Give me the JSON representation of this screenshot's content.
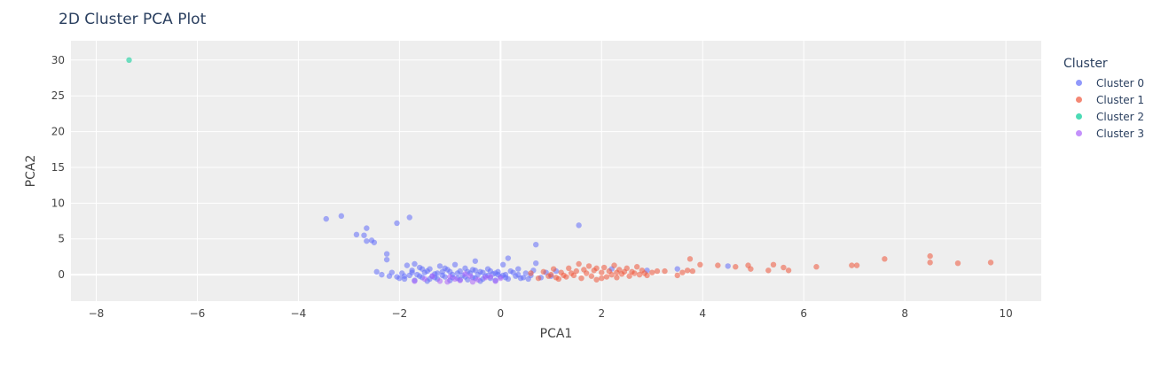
{
  "chart_data": {
    "type": "scatter",
    "title": "2D Cluster PCA Plot",
    "xlabel": "PCA1",
    "ylabel": "PCA2",
    "xlim": [
      -8.5,
      10.7
    ],
    "ylim": [
      -3.7,
      32.7
    ],
    "xticks": [
      -8,
      -6,
      -4,
      -2,
      0,
      2,
      4,
      6,
      8,
      10
    ],
    "yticks": [
      0,
      5,
      10,
      15,
      20,
      25,
      30
    ],
    "grid": true,
    "legend_title": "Cluster",
    "legend_position": "right",
    "series": [
      {
        "name": "Cluster 0",
        "color": "#636efa",
        "points": [
          [
            -3.45,
            7.8
          ],
          [
            -3.15,
            8.2
          ],
          [
            -2.85,
            5.6
          ],
          [
            -2.65,
            6.5
          ],
          [
            -2.7,
            5.5
          ],
          [
            -2.65,
            4.7
          ],
          [
            -2.55,
            4.8
          ],
          [
            -2.5,
            4.5
          ],
          [
            -2.25,
            2.9
          ],
          [
            -2.25,
            2.1
          ],
          [
            -2.05,
            7.2
          ],
          [
            -1.8,
            8.0
          ],
          [
            0.7,
            4.2
          ],
          [
            1.55,
            6.9
          ],
          [
            0.15,
            2.3
          ],
          [
            -0.5,
            1.9
          ],
          [
            -2.45,
            0.4
          ],
          [
            -2.35,
            0.0
          ],
          [
            -2.2,
            -0.2
          ],
          [
            -2.15,
            0.3
          ],
          [
            -2.05,
            -0.3
          ],
          [
            -1.95,
            0.2
          ],
          [
            -1.9,
            -0.6
          ],
          [
            -1.85,
            1.3
          ],
          [
            -1.8,
            -0.1
          ],
          [
            -1.75,
            0.6
          ],
          [
            -1.7,
            -0.8
          ],
          [
            -1.65,
            0.0
          ],
          [
            -1.6,
            1.0
          ],
          [
            -1.55,
            -0.4
          ],
          [
            -1.5,
            0.3
          ],
          [
            -1.45,
            -0.9
          ],
          [
            -1.4,
            0.8
          ],
          [
            -1.35,
            -0.2
          ],
          [
            -1.3,
            0.1
          ],
          [
            -1.25,
            -0.6
          ],
          [
            -1.2,
            1.2
          ],
          [
            -1.15,
            0.4
          ],
          [
            -1.1,
            -0.3
          ],
          [
            -1.05,
            0.7
          ],
          [
            -1.0,
            -0.8
          ],
          [
            -0.95,
            0.0
          ],
          [
            -0.9,
            1.4
          ],
          [
            -0.85,
            -0.5
          ],
          [
            -0.8,
            0.5
          ],
          [
            -0.75,
            -0.1
          ],
          [
            -0.7,
            0.9
          ],
          [
            -0.65,
            -0.7
          ],
          [
            -0.6,
            0.2
          ],
          [
            -0.55,
            -0.4
          ],
          [
            -0.5,
            0.6
          ],
          [
            -0.45,
            0.0
          ],
          [
            -0.4,
            -0.9
          ],
          [
            -0.35,
            0.3
          ],
          [
            -0.3,
            -0.2
          ],
          [
            -0.25,
            0.8
          ],
          [
            -0.2,
            -0.5
          ],
          [
            -0.15,
            0.1
          ],
          [
            -0.1,
            -0.8
          ],
          [
            -0.05,
            0.4
          ],
          [
            0.0,
            -0.3
          ],
          [
            0.05,
            1.4
          ],
          [
            0.1,
            0.0
          ],
          [
            0.15,
            -0.6
          ],
          [
            0.2,
            0.5
          ],
          [
            0.3,
            -0.2
          ],
          [
            0.35,
            0.8
          ],
          [
            0.4,
            -0.5
          ],
          [
            0.5,
            0.2
          ],
          [
            0.6,
            -0.1
          ],
          [
            0.65,
            0.6
          ],
          [
            0.7,
            1.6
          ],
          [
            0.8,
            -0.4
          ],
          [
            0.9,
            0.3
          ],
          [
            1.0,
            -0.2
          ],
          [
            1.1,
            0.5
          ],
          [
            -1.75,
            0.3
          ],
          [
            -1.6,
            -0.2
          ],
          [
            -1.45,
            0.5
          ],
          [
            -1.3,
            -0.4
          ],
          [
            -1.15,
            -0.1
          ],
          [
            -1.0,
            0.4
          ],
          [
            -0.85,
            0.2
          ],
          [
            -0.7,
            -0.3
          ],
          [
            -0.55,
            0.7
          ],
          [
            -0.4,
            0.4
          ],
          [
            -0.25,
            -0.1
          ],
          [
            -0.1,
            0.2
          ],
          [
            0.05,
            -0.1
          ],
          [
            0.25,
            0.3
          ],
          [
            0.45,
            -0.4
          ],
          [
            -1.9,
            -0.2
          ],
          [
            -1.55,
            0.8
          ],
          [
            -1.25,
            0.2
          ],
          [
            -0.95,
            -0.4
          ],
          [
            -0.65,
            0.4
          ],
          [
            -0.35,
            -0.6
          ],
          [
            -0.05,
            0.0
          ],
          [
            0.55,
            -0.6
          ],
          [
            2.2,
            0.8
          ],
          [
            2.9,
            0.6
          ],
          [
            3.5,
            0.8
          ],
          [
            4.5,
            1.2
          ],
          [
            -2.0,
            -0.5
          ],
          [
            -1.7,
            1.5
          ],
          [
            -1.4,
            -0.6
          ],
          [
            -1.1,
            0.9
          ],
          [
            -0.8,
            -0.7
          ],
          [
            -0.5,
            -0.5
          ],
          [
            -0.2,
            0.5
          ],
          [
            0.1,
            -0.4
          ],
          [
            0.35,
            0.0
          ]
        ]
      },
      {
        "name": "Cluster 1",
        "color": "#ef553b",
        "points": [
          [
            0.6,
            0.2
          ],
          [
            0.75,
            -0.5
          ],
          [
            0.85,
            0.4
          ],
          [
            0.95,
            -0.2
          ],
          [
            1.05,
            0.8
          ],
          [
            1.15,
            -0.6
          ],
          [
            1.2,
            0.3
          ],
          [
            1.3,
            -0.3
          ],
          [
            1.35,
            0.9
          ],
          [
            1.45,
            -0.1
          ],
          [
            1.5,
            0.5
          ],
          [
            1.55,
            1.5
          ],
          [
            1.6,
            -0.5
          ],
          [
            1.7,
            0.2
          ],
          [
            1.75,
            1.2
          ],
          [
            1.8,
            -0.2
          ],
          [
            1.85,
            0.6
          ],
          [
            1.9,
            -0.7
          ],
          [
            2.0,
            0.3
          ],
          [
            2.05,
            1.0
          ],
          [
            2.1,
            -0.3
          ],
          [
            2.15,
            0.5
          ],
          [
            2.2,
            0.0
          ],
          [
            2.25,
            1.3
          ],
          [
            2.3,
            -0.4
          ],
          [
            2.35,
            0.7
          ],
          [
            2.4,
            0.1
          ],
          [
            2.5,
            0.9
          ],
          [
            2.55,
            -0.2
          ],
          [
            2.6,
            0.4
          ],
          [
            2.7,
            1.1
          ],
          [
            2.75,
            0.0
          ],
          [
            2.8,
            0.6
          ],
          [
            2.9,
            -0.1
          ],
          [
            3.0,
            0.3
          ],
          [
            3.1,
            0.5
          ],
          [
            3.5,
            -0.1
          ],
          [
            3.6,
            0.3
          ],
          [
            3.7,
            0.6
          ],
          [
            3.75,
            2.2
          ],
          [
            3.8,
            0.5
          ],
          [
            3.95,
            1.4
          ],
          [
            4.3,
            1.3
          ],
          [
            4.65,
            1.1
          ],
          [
            4.9,
            1.3
          ],
          [
            4.95,
            0.8
          ],
          [
            5.3,
            0.6
          ],
          [
            5.4,
            1.4
          ],
          [
            5.6,
            1.0
          ],
          [
            5.7,
            0.6
          ],
          [
            6.25,
            1.1
          ],
          [
            6.95,
            1.3
          ],
          [
            7.05,
            1.3
          ],
          [
            7.6,
            2.2
          ],
          [
            8.5,
            2.6
          ],
          [
            8.5,
            1.7
          ],
          [
            9.05,
            1.6
          ],
          [
            9.7,
            1.7
          ],
          [
            1.25,
            -0.1
          ],
          [
            1.65,
            0.7
          ],
          [
            2.45,
            0.4
          ],
          [
            2.85,
            0.2
          ],
          [
            1.0,
            0.0
          ],
          [
            1.4,
            0.2
          ],
          [
            2.0,
            -0.5
          ],
          [
            1.9,
            0.9
          ],
          [
            2.65,
            0.2
          ],
          [
            3.25,
            0.5
          ],
          [
            1.1,
            -0.4
          ],
          [
            2.3,
            0.3
          ]
        ]
      },
      {
        "name": "Cluster 2",
        "color": "#00cc96",
        "points": [
          [
            -7.35,
            30.0
          ]
        ]
      },
      {
        "name": "Cluster 3",
        "color": "#ab63fa",
        "points": [
          [
            -1.5,
            -0.6
          ],
          [
            -1.2,
            -0.9
          ],
          [
            -1.0,
            -0.3
          ],
          [
            -0.8,
            -0.8
          ],
          [
            -0.6,
            -0.2
          ],
          [
            -0.45,
            -0.7
          ],
          [
            -0.3,
            -0.4
          ],
          [
            -0.1,
            -0.9
          ],
          [
            0.0,
            -0.5
          ],
          [
            -1.35,
            -0.2
          ],
          [
            -0.9,
            -0.6
          ],
          [
            -0.7,
            0.1
          ],
          [
            -0.2,
            -0.3
          ],
          [
            -1.05,
            -1.0
          ],
          [
            -0.55,
            -1.0
          ],
          [
            -1.7,
            -0.9
          ]
        ]
      }
    ]
  }
}
